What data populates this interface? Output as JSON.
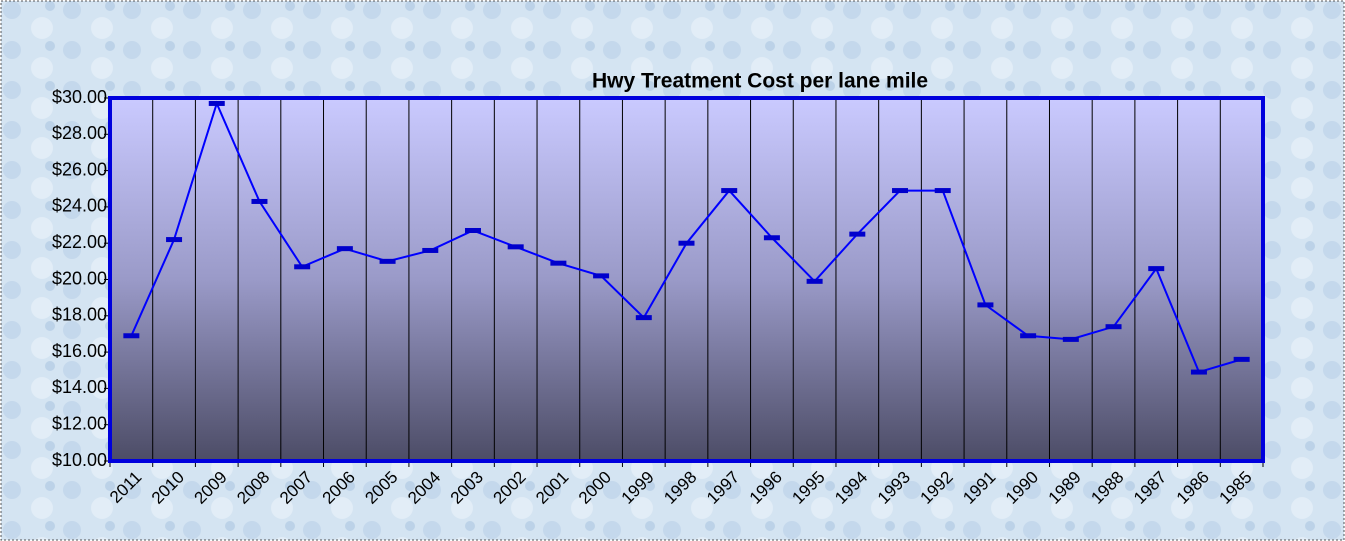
{
  "chart_data": {
    "type": "line",
    "title": "Hwy Treatment Cost per lane mile",
    "categories": [
      "2011",
      "2010",
      "2009",
      "2008",
      "2007",
      "2006",
      "2005",
      "2004",
      "2003",
      "2002",
      "2001",
      "2000",
      "1999",
      "1998",
      "1997",
      "1996",
      "1995",
      "1994",
      "1993",
      "1992",
      "1991",
      "1990",
      "1989",
      "1988",
      "1987",
      "1986",
      "1985"
    ],
    "values": [
      16.9,
      22.2,
      29.7,
      24.3,
      20.7,
      21.7,
      21.0,
      21.6,
      22.7,
      21.8,
      20.9,
      20.2,
      17.9,
      22.0,
      24.9,
      22.3,
      19.9,
      22.5,
      24.9,
      24.9,
      18.6,
      16.9,
      16.7,
      17.4,
      20.6,
      14.9,
      15.6
    ],
    "color": "#0000ff",
    "ylim": [
      10,
      30
    ],
    "yticks": [
      {
        "value": 10,
        "label": "$10.00"
      },
      {
        "value": 12,
        "label": "$12.00"
      },
      {
        "value": 14,
        "label": "$14.00"
      },
      {
        "value": 16,
        "label": "$16.00"
      },
      {
        "value": 18,
        "label": "$18.00"
      },
      {
        "value": 20,
        "label": "$20.00"
      },
      {
        "value": 22,
        "label": "$22.00"
      },
      {
        "value": 24,
        "label": "$24.00"
      },
      {
        "value": 26,
        "label": "$26.00"
      },
      {
        "value": 28,
        "label": "$28.00"
      },
      {
        "value": 30,
        "label": "$30.00"
      }
    ],
    "grid": true
  }
}
